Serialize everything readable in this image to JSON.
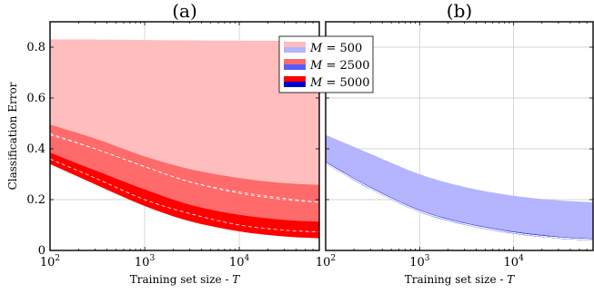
{
  "chart_data": [
    {
      "type": "area",
      "title": "(a)",
      "xlabel": "Training set size - T",
      "ylabel": "Classification Error",
      "xscale": "log",
      "xlim": [
        100,
        70000
      ],
      "ylim": [
        0,
        0.9
      ],
      "xticks": [
        100,
        1000,
        10000
      ],
      "xtick_labels": [
        {
          "base": "10",
          "exp": "2"
        },
        {
          "base": "10",
          "exp": "3"
        },
        {
          "base": "10",
          "exp": "4"
        }
      ],
      "yticks": [
        0,
        0.2,
        0.4,
        0.6,
        0.8
      ],
      "ytick_labels": [
        "0",
        "0.2",
        "0.4",
        "0.6",
        "0.8"
      ],
      "grid": true,
      "legend_position": "top-right",
      "x": [
        100,
        300,
        1000,
        3000,
        10000,
        30000,
        70000
      ],
      "series": [
        {
          "name": "M = 500",
          "color": "#ffbdbd",
          "upper": [
            0.83,
            0.83,
            0.828,
            0.827,
            0.826,
            0.825,
            0.824
          ],
          "lower": [
            0.39,
            0.34,
            0.28,
            0.235,
            0.2,
            0.18,
            0.175
          ],
          "mean": [
            0.46,
            0.4,
            0.33,
            0.27,
            0.23,
            0.205,
            0.19
          ]
        },
        {
          "name": "M = 2500",
          "color": "#ff6a6a",
          "upper": [
            0.495,
            0.44,
            0.37,
            0.32,
            0.285,
            0.265,
            0.258
          ],
          "lower": [
            0.355,
            0.29,
            0.215,
            0.16,
            0.12,
            0.1,
            0.093
          ],
          "mean": [
            0.455,
            0.4,
            0.33,
            0.27,
            0.225,
            0.2,
            0.19
          ]
        },
        {
          "name": "M = 5000",
          "color": "#ff0000",
          "upper": [
            0.385,
            0.315,
            0.24,
            0.18,
            0.14,
            0.12,
            0.113
          ],
          "lower": [
            0.34,
            0.26,
            0.175,
            0.115,
            0.075,
            0.055,
            0.048
          ],
          "mean": [
            0.36,
            0.285,
            0.2,
            0.145,
            0.1,
            0.08,
            0.073
          ]
        }
      ]
    },
    {
      "type": "area",
      "title": "(b)",
      "xlabel": "Training set size - T",
      "ylabel": "",
      "xscale": "log",
      "xlim": [
        100,
        70000
      ],
      "ylim": [
        0,
        0.9
      ],
      "xticks": [
        100,
        1000,
        10000
      ],
      "xtick_labels": [
        {
          "base": "10",
          "exp": "2"
        },
        {
          "base": "10",
          "exp": "3"
        },
        {
          "base": "10",
          "exp": "4"
        }
      ],
      "yticks": [
        0,
        0.2,
        0.4,
        0.6,
        0.8
      ],
      "grid": true,
      "x": [
        100,
        300,
        1000,
        3000,
        10000,
        30000,
        70000
      ],
      "series": [
        {
          "name": "M = 500",
          "color": "#b4b4ff",
          "upper": [
            0.455,
            0.38,
            0.3,
            0.25,
            0.215,
            0.197,
            0.19
          ],
          "lower": [
            0.35,
            0.25,
            0.16,
            0.11,
            0.075,
            0.055,
            0.047
          ],
          "mean": [
            0.345,
            0.245,
            0.155,
            0.105,
            0.07,
            0.05,
            0.043
          ]
        },
        {
          "name": "M = 2500",
          "color": "#5a5aff",
          "upper": [
            0.35,
            0.25,
            0.16,
            0.11,
            0.075,
            0.055,
            0.047
          ],
          "lower": [
            0.343,
            0.243,
            0.153,
            0.103,
            0.068,
            0.049,
            0.041
          ],
          "mean": [
            0.345,
            0.245,
            0.155,
            0.105,
            0.07,
            0.05,
            0.043
          ]
        },
        {
          "name": "M = 5000",
          "color": "#0000cc",
          "upper": [
            0.348,
            0.248,
            0.158,
            0.108,
            0.073,
            0.053,
            0.045
          ],
          "lower": [
            0.341,
            0.241,
            0.151,
            0.101,
            0.066,
            0.047,
            0.039
          ],
          "mean": [
            0.344,
            0.244,
            0.154,
            0.104,
            0.069,
            0.05,
            0.042
          ]
        }
      ]
    }
  ],
  "legend": {
    "entries": [
      {
        "var": "M",
        "value": "500",
        "top_color": "#ffbdbd",
        "bottom_color": "#b4b4ff"
      },
      {
        "var": "M",
        "value": "2500",
        "top_color": "#ff6a6a",
        "bottom_color": "#5a5aff"
      },
      {
        "var": "M",
        "value": "5000",
        "top_color": "#ff0000",
        "bottom_color": "#0000cc"
      }
    ]
  }
}
